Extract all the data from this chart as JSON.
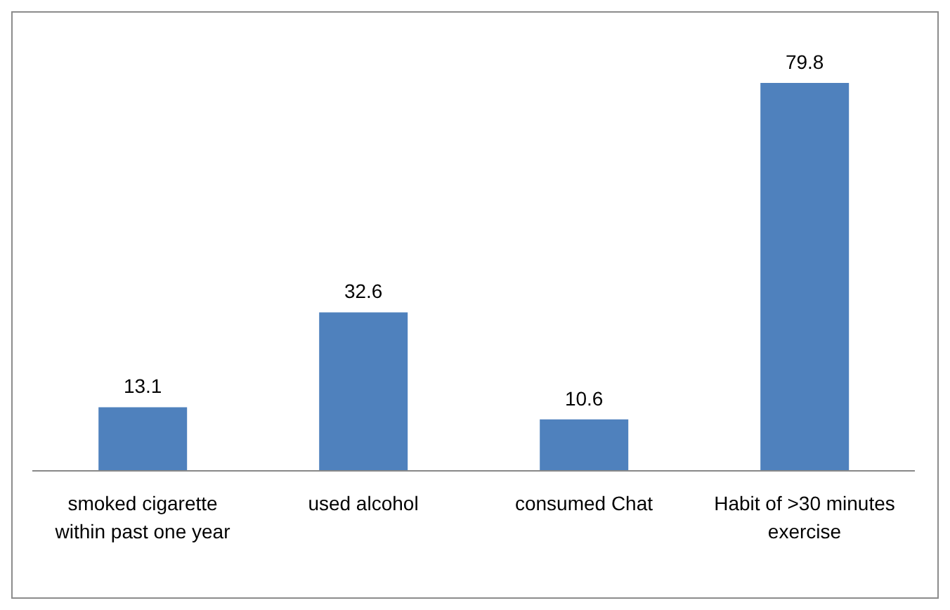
{
  "chart_data": {
    "type": "bar",
    "categories": [
      "smoked cigarette within past  one year",
      "used alcohol",
      "consumed Chat",
      "Habit of >30 minutes exercise"
    ],
    "values": [
      13.1,
      32.6,
      10.6,
      79.8
    ],
    "color": "#4f81bd",
    "data_labels": true,
    "grid": false,
    "legend": false
  }
}
